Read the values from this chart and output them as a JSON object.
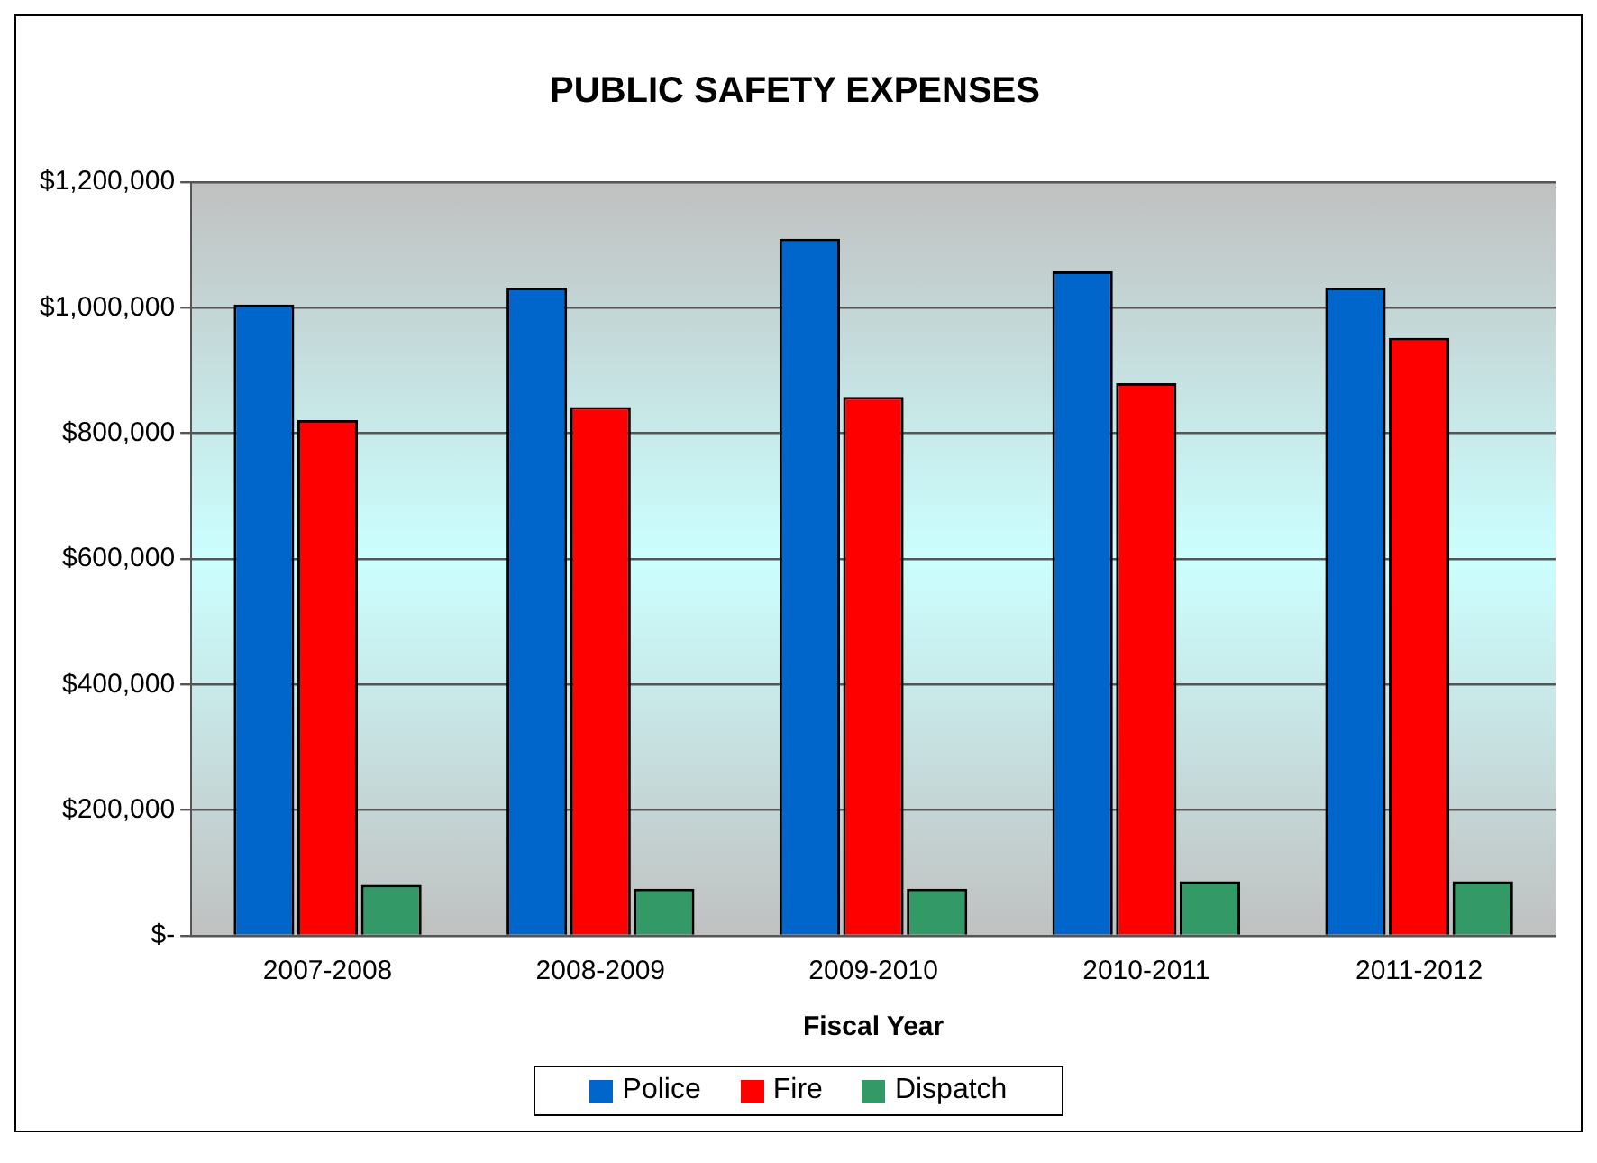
{
  "chart_data": {
    "type": "bar",
    "title": "PUBLIC SAFETY EXPENSES",
    "xlabel": "Fiscal Year",
    "categories": [
      "2007-2008",
      "2008-2009",
      "2009-2010",
      "2010-2011",
      "2011-2012"
    ],
    "series": [
      {
        "name": "Police",
        "color": "#0066cc",
        "values": [
          1005000,
          1032000,
          1110000,
          1058000,
          1032000
        ]
      },
      {
        "name": "Fire",
        "color": "#ff0000",
        "values": [
          821000,
          842000,
          858000,
          880000,
          952000
        ]
      },
      {
        "name": "Dispatch",
        "color": "#339966",
        "values": [
          81000,
          75000,
          75000,
          87000,
          87000
        ]
      }
    ],
    "ylim": [
      0,
      1200000
    ],
    "yticks": [
      {
        "value": 0,
        "label": "$-"
      },
      {
        "value": 200000,
        "label": "$200,000"
      },
      {
        "value": 400000,
        "label": "$400,000"
      },
      {
        "value": 600000,
        "label": "$600,000"
      },
      {
        "value": 800000,
        "label": "$800,000"
      },
      {
        "value": 1000000,
        "label": "$1,000,000"
      },
      {
        "value": 1200000,
        "label": "$1,200,000"
      }
    ],
    "grid": "y",
    "legend": "bottom"
  }
}
